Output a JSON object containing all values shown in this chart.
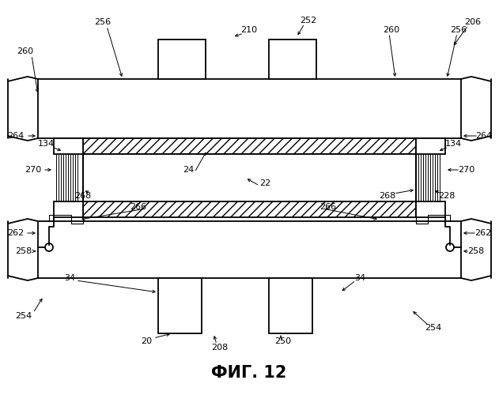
{
  "title": "ФИГ. 12",
  "bg_color": "#ffffff",
  "line_color": "#000000",
  "title_fontsize": 15
}
